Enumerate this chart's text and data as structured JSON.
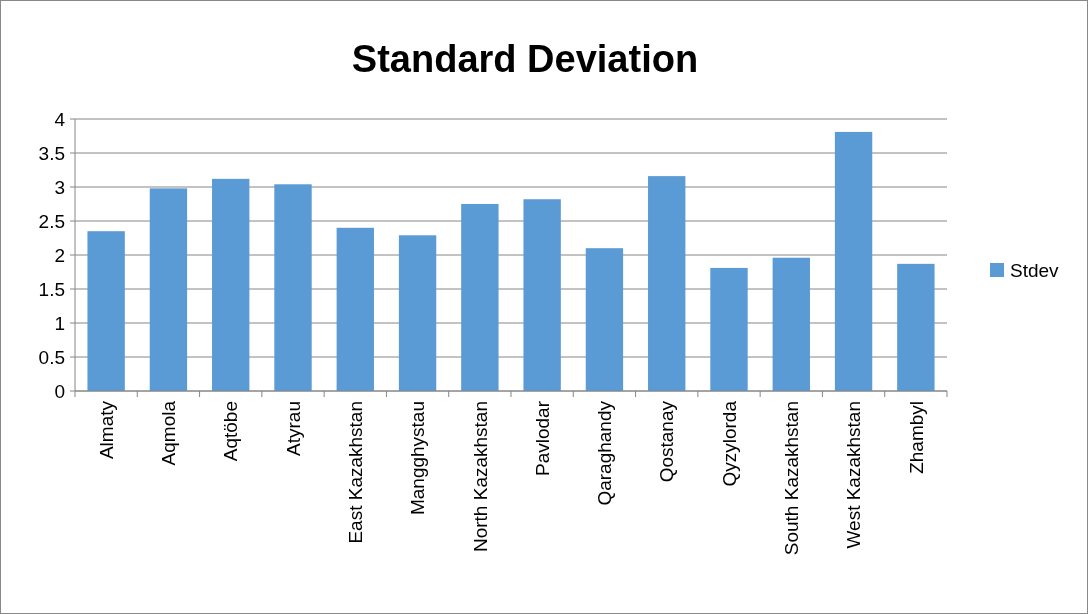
{
  "chart_data": {
    "type": "bar",
    "title": "Standard Deviation",
    "categories": [
      "Almaty",
      "Aqmola",
      "Aqtöbe",
      "Atyrau",
      "East Kazakhstan",
      "Mangghystau",
      "North Kazakhstan",
      "Pavlodar",
      "Qaraghandy",
      "Qostanay",
      "Qyzylorda",
      "South Kazakhstan",
      "West Kazakhstan",
      "Zhambyl"
    ],
    "series": [
      {
        "name": "Stdev",
        "color": "#5b9bd5",
        "values": [
          2.35,
          2.98,
          3.12,
          3.04,
          2.4,
          2.29,
          2.75,
          2.82,
          2.1,
          3.16,
          1.81,
          1.96,
          3.81,
          1.87
        ]
      }
    ],
    "ylim": [
      0,
      4
    ],
    "yticks": [
      0,
      0.5,
      1,
      1.5,
      2,
      2.5,
      3,
      3.5,
      4
    ],
    "grid": "y",
    "legend": "right"
  }
}
